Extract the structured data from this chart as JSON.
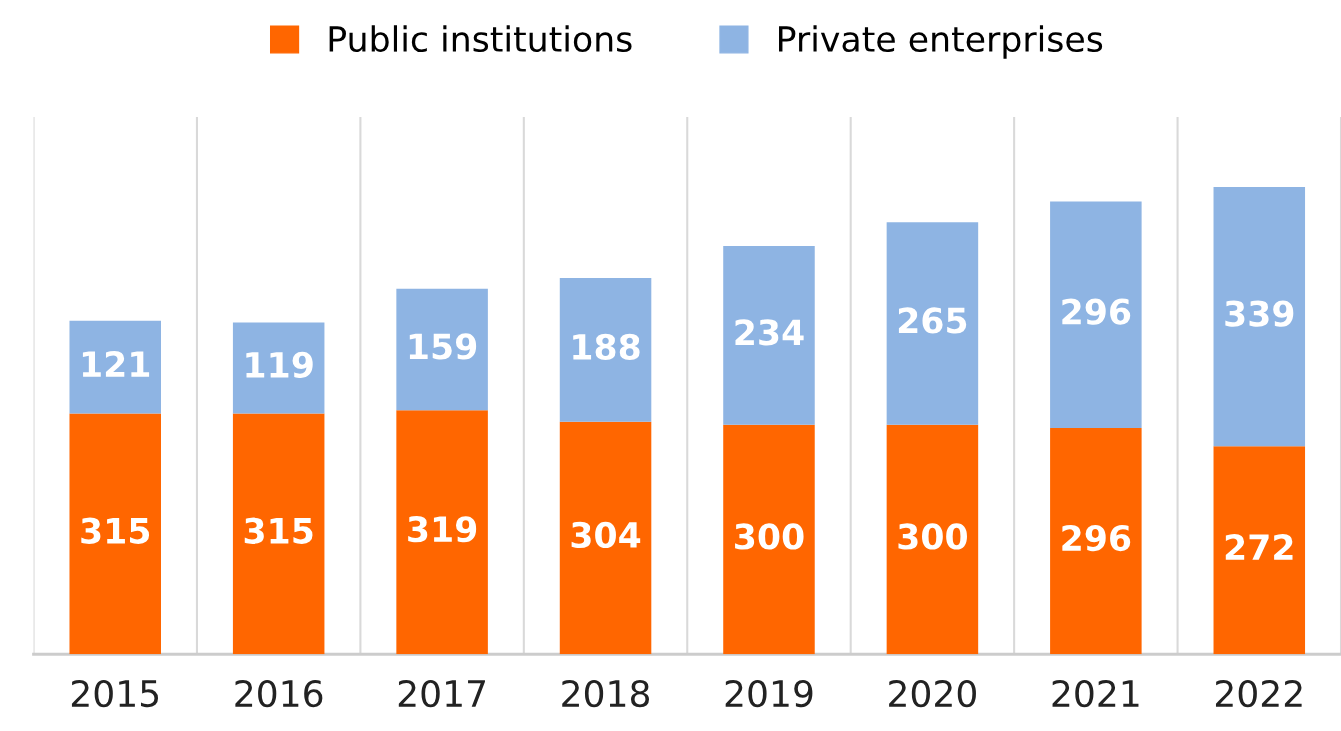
{
  "chart_data": {
    "type": "bar",
    "stacked": true,
    "data_labels": true,
    "grid": "x",
    "legend": "top",
    "categories": [
      "2015",
      "2016",
      "2017",
      "2018",
      "2019",
      "2020",
      "2021",
      "2022"
    ],
    "series": [
      {
        "name": "Public institutions",
        "color": "#ff6600",
        "values": [
          315,
          315,
          319,
          304,
          300,
          300,
          296,
          272
        ]
      },
      {
        "name": "Private enterprises",
        "color": "#8eb4e3",
        "values": [
          121,
          119,
          159,
          188,
          234,
          265,
          296,
          339
        ]
      }
    ]
  }
}
